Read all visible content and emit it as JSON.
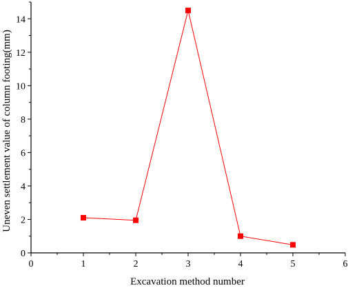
{
  "chart_data": {
    "type": "line",
    "xlabel": "Excavation method number",
    "ylabel": "Uneven settlement value of column footing(mm)",
    "xlim": [
      0,
      6
    ],
    "ylim": [
      0,
      15
    ],
    "x_ticks": [
      0,
      1,
      2,
      3,
      4,
      5,
      6
    ],
    "y_ticks": [
      0,
      2,
      4,
      6,
      8,
      10,
      12,
      14
    ],
    "grid": false,
    "series": [
      {
        "x": [
          1,
          2,
          3,
          4,
          5
        ],
        "y": [
          2.1,
          1.95,
          14.5,
          1.0,
          0.48
        ],
        "color": "#ff0000",
        "marker": "square"
      }
    ]
  }
}
